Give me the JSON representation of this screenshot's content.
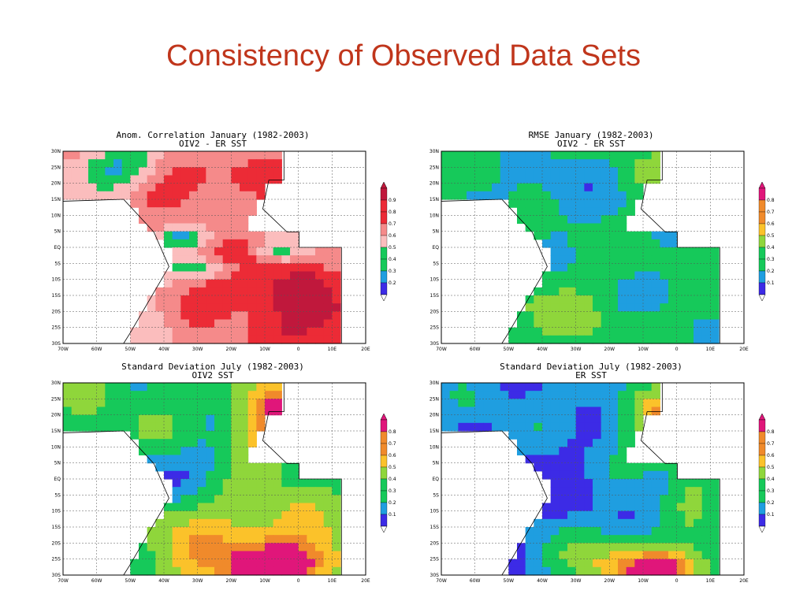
{
  "slide": {
    "title": "Consistency of Observed Data Sets"
  },
  "palettes": {
    "red": [
      "#3c2be6",
      "#1f9ee0",
      "#16c95a",
      "#fbbdbd",
      "#f58a8a",
      "#ec2b36",
      "#c0183c"
    ],
    "std": [
      "#3c2be6",
      "#1f9ee0",
      "#16c95a",
      "#8fd63b",
      "#fbc22a",
      "#f08a2b",
      "#e0167a"
    ]
  },
  "chart_data": [
    {
      "type": "heatmap",
      "title": "Anom. Correlation January (1982-2003)",
      "subtitle": "OIV2 - ER SST",
      "palette": "red",
      "colorbar_ticks": [
        "0.9",
        "0.8",
        "0.7",
        "0.6",
        "0.5",
        "0.4",
        "0.3",
        "0.2"
      ],
      "x_ticks": [
        "70W",
        "60W",
        "50W",
        "40W",
        "30W",
        "20W",
        "10W",
        "0",
        "10E",
        "20E"
      ],
      "y_ticks": [
        "30N",
        "25N",
        "20N",
        "15N",
        "10N",
        "5N",
        "EQ",
        "5S",
        "10S",
        "15S",
        "20S",
        "25S",
        "30S"
      ],
      "xlim": [
        -70,
        20
      ],
      "ylim": [
        -30,
        30
      ],
      "grid": true,
      "levels": [
        0.2,
        0.9
      ]
    },
    {
      "type": "heatmap",
      "title": "RMSE January (1982-2003)",
      "subtitle": "OIV2 - ER SST",
      "palette": "std",
      "colorbar_ticks": [
        "0.8",
        "0.7",
        "0.6",
        "0.5",
        "0.4",
        "0.3",
        "0.2",
        "0.1"
      ],
      "x_ticks": [
        "70W",
        "60W",
        "50W",
        "40W",
        "30W",
        "20W",
        "10W",
        "0",
        "10E",
        "20E"
      ],
      "y_ticks": [
        "30N",
        "25N",
        "20N",
        "15N",
        "10N",
        "5N",
        "EQ",
        "5S",
        "10S",
        "15S",
        "20S",
        "25S",
        "30S"
      ],
      "xlim": [
        -70,
        20
      ],
      "ylim": [
        -30,
        30
      ],
      "grid": true,
      "levels": [
        0.1,
        0.8
      ]
    },
    {
      "type": "heatmap",
      "title": "Standard Deviation July (1982-2003)",
      "subtitle": "OIV2 SST",
      "palette": "std",
      "colorbar_ticks": [
        "0.8",
        "0.7",
        "0.6",
        "0.5",
        "0.4",
        "0.3",
        "0.2",
        "0.1"
      ],
      "x_ticks": [
        "70W",
        "60W",
        "50W",
        "40W",
        "30W",
        "20W",
        "10W",
        "0",
        "10E",
        "20E"
      ],
      "y_ticks": [
        "30N",
        "25N",
        "20N",
        "15N",
        "10N",
        "5N",
        "EQ",
        "5S",
        "10S",
        "15S",
        "20S",
        "25S",
        "30S"
      ],
      "xlim": [
        -70,
        20
      ],
      "ylim": [
        -30,
        30
      ],
      "grid": true,
      "levels": [
        0.1,
        0.8
      ]
    },
    {
      "type": "heatmap",
      "title": "Standard Deviation July (1982-2003)",
      "subtitle": "ER SST",
      "palette": "std",
      "colorbar_ticks": [
        "0.8",
        "0.7",
        "0.6",
        "0.5",
        "0.4",
        "0.3",
        "0.2",
        "0.1"
      ],
      "x_ticks": [
        "70W",
        "60W",
        "50W",
        "40W",
        "30W",
        "20W",
        "10W",
        "0",
        "10E",
        "20E"
      ],
      "y_ticks": [
        "30N",
        "25N",
        "20N",
        "15N",
        "10N",
        "5N",
        "EQ",
        "5S",
        "10S",
        "15S",
        "20S",
        "25S",
        "30S"
      ],
      "xlim": [
        -70,
        20
      ],
      "ylim": [
        -30,
        30
      ],
      "grid": true,
      "levels": [
        0.1,
        0.8
      ]
    }
  ]
}
